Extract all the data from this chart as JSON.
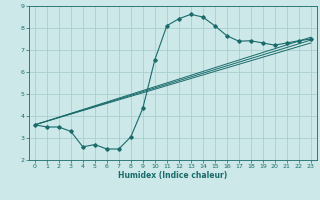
{
  "background_color": "#cce8e8",
  "grid_color": "#aacfcf",
  "line_color": "#1a6b6b",
  "xlabel": "Humidex (Indice chaleur)",
  "xlim": [
    -0.5,
    23.5
  ],
  "ylim": [
    2,
    9
  ],
  "xticks": [
    0,
    1,
    2,
    3,
    4,
    5,
    6,
    7,
    8,
    9,
    10,
    11,
    12,
    13,
    14,
    15,
    16,
    17,
    18,
    19,
    20,
    21,
    22,
    23
  ],
  "yticks": [
    2,
    3,
    4,
    5,
    6,
    7,
    8,
    9
  ],
  "curve_x": [
    0,
    1,
    2,
    3,
    4,
    5,
    6,
    7,
    8,
    9,
    10,
    11,
    12,
    13,
    14,
    15,
    16,
    17,
    18,
    19,
    20,
    21,
    22,
    23
  ],
  "curve_y": [
    3.6,
    3.5,
    3.5,
    3.3,
    2.6,
    2.7,
    2.5,
    2.5,
    3.05,
    4.35,
    6.55,
    8.1,
    8.42,
    8.62,
    8.5,
    8.1,
    7.65,
    7.4,
    7.42,
    7.32,
    7.22,
    7.32,
    7.42,
    7.5
  ],
  "line1_x": [
    0,
    23
  ],
  "line1_y": [
    3.6,
    7.45
  ],
  "line2_x": [
    0,
    23
  ],
  "line2_y": [
    3.6,
    7.32
  ],
  "line3_x": [
    0,
    23
  ],
  "line3_y": [
    3.6,
    7.58
  ]
}
